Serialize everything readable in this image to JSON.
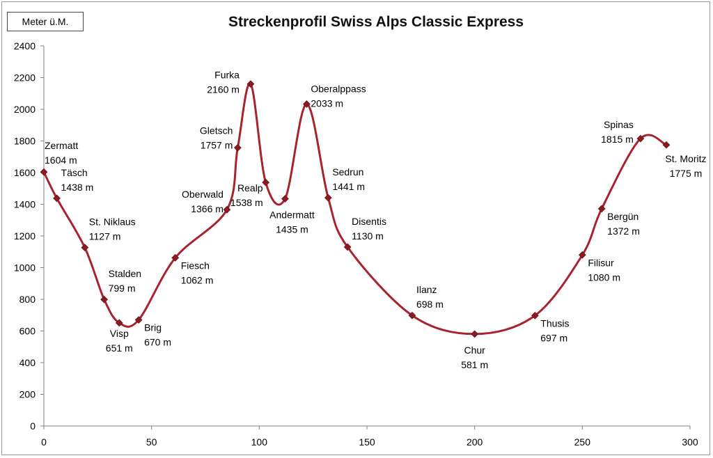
{
  "chart_data": {
    "type": "line",
    "title": "Streckenprofil  Swiss Alps Classic Express",
    "ylabel": "Meter ü.M.",
    "xlabel": "",
    "xlim": [
      0,
      300
    ],
    "ylim": [
      0,
      2400
    ],
    "x_ticks": [
      0,
      50,
      100,
      150,
      200,
      250,
      300
    ],
    "y_ticks": [
      0,
      200,
      400,
      600,
      800,
      1000,
      1200,
      1400,
      1600,
      1800,
      2000,
      2200,
      2400
    ],
    "grid": false,
    "line_color": "#a8232e",
    "stations": [
      {
        "name": "Zermatt",
        "elev_label": "1604 m",
        "x": 0,
        "y": 1604,
        "label_pos": "right-above"
      },
      {
        "name": "Täsch",
        "elev_label": "1438 m",
        "x": 6,
        "y": 1438,
        "label_pos": "right-above"
      },
      {
        "name": "St. Niklaus",
        "elev_label": "1127 m",
        "x": 19,
        "y": 1127,
        "label_pos": "right-above"
      },
      {
        "name": "Stalden",
        "elev_label": "799 m",
        "x": 28,
        "y": 799,
        "label_pos": "right-above"
      },
      {
        "name": "Visp",
        "elev_label": "651 m",
        "x": 35,
        "y": 651,
        "label_pos": "below"
      },
      {
        "name": "Brig",
        "elev_label": "670 m",
        "x": 44,
        "y": 670,
        "label_pos": "right-below"
      },
      {
        "name": "Fiesch",
        "elev_label": "1062 m",
        "x": 61,
        "y": 1062,
        "label_pos": "right-below"
      },
      {
        "name": "Oberwald",
        "elev_label": "1366 m",
        "x": 85,
        "y": 1366,
        "label_pos": "left"
      },
      {
        "name": "Gletsch",
        "elev_label": "1757 m",
        "x": 90,
        "y": 1757,
        "label_pos": "left"
      },
      {
        "name": "Furka",
        "elev_label": "2160 m",
        "x": 96,
        "y": 2160,
        "label_pos": "left-above"
      },
      {
        "name": "Realp",
        "elev_label": "1538 m",
        "x": 103,
        "y": 1538,
        "label_pos": "left-below"
      },
      {
        "name": "Andermatt",
        "elev_label": "1435 m",
        "x": 112,
        "y": 1435,
        "label_pos": "below"
      },
      {
        "name": "Oberalppass",
        "elev_label": "2033 m",
        "x": 122,
        "y": 2033,
        "label_pos": "right-above"
      },
      {
        "name": "Sedrun",
        "elev_label": "1441 m",
        "x": 132,
        "y": 1441,
        "label_pos": "right-above"
      },
      {
        "name": "Disentis",
        "elev_label": "1130 m",
        "x": 141,
        "y": 1130,
        "label_pos": "right-above"
      },
      {
        "name": "Ilanz",
        "elev_label": "698 m",
        "x": 171,
        "y": 698,
        "label_pos": "right-above"
      },
      {
        "name": "Chur",
        "elev_label": "581 m",
        "x": 200,
        "y": 581,
        "label_pos": "below"
      },
      {
        "name": "Thusis",
        "elev_label": "697 m",
        "x": 228,
        "y": 697,
        "label_pos": "right-below"
      },
      {
        "name": "Filisur",
        "elev_label": "1080 m",
        "x": 250,
        "y": 1080,
        "label_pos": "right-below"
      },
      {
        "name": "Bergün",
        "elev_label": "1372 m",
        "x": 259,
        "y": 1372,
        "label_pos": "right-below"
      },
      {
        "name": "Spinas",
        "elev_label": "1815 m",
        "x": 277,
        "y": 1815,
        "label_pos": "left-above"
      },
      {
        "name": "St. Moritz",
        "elev_label": "1775 m",
        "x": 289,
        "y": 1775,
        "label_pos": "below"
      }
    ]
  }
}
